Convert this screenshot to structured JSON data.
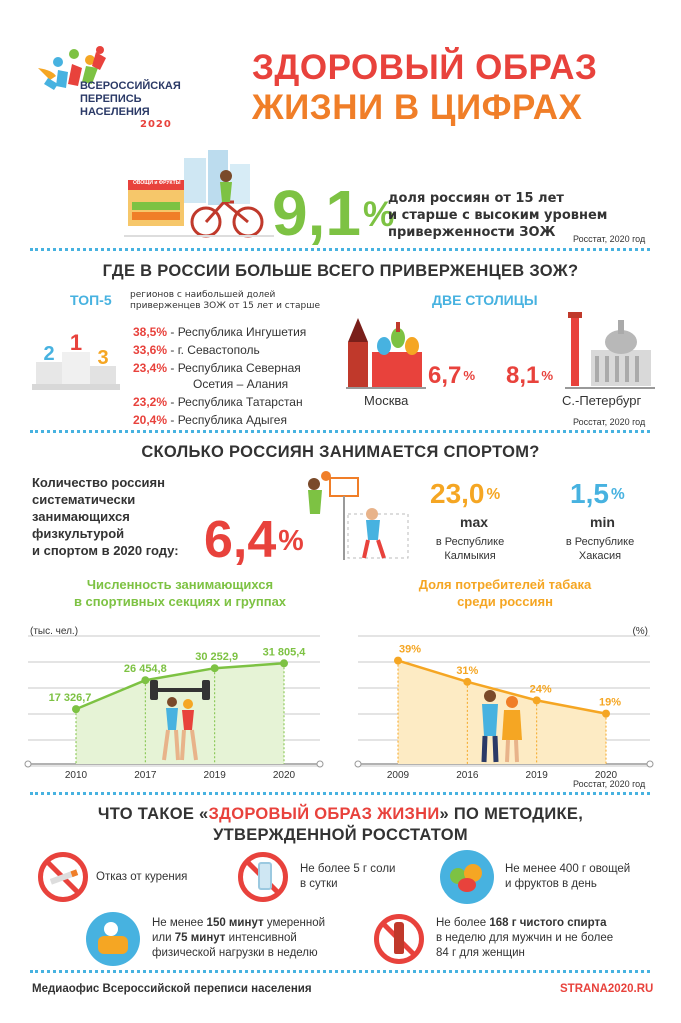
{
  "header": {
    "logo_line1": "ВСЕРОССИЙСКАЯ",
    "logo_line2": "ПЕРЕПИСЬ",
    "logo_line3": "НАСЕЛЕНИЯ",
    "logo_year": "2020",
    "title_line1": "ЗДОРОВЫЙ ОБРАЗ",
    "title_line2": "ЖИЗНИ В ЦИФРАХ"
  },
  "illustration": {
    "shop_sign": "ОВОЩИ и ФРУКТЫ"
  },
  "zozh": {
    "value": "9,1",
    "unit": "%",
    "text_line1": "доля россиян от 15 лет",
    "text_line2": "и старше с высоким уровнем",
    "text_line3": "приверженности ЗОЖ",
    "source": "Росстат, 2020 год"
  },
  "regions": {
    "section_title": "ГДЕ В РОССИИ БОЛЬШЕ ВСЕГО ПРИВЕРЖЕНЦЕВ ЗОЖ?",
    "top5_label": "ТОП-5",
    "top5_sub_line1": "регионов с наибольшей долей",
    "top5_sub_line2": "приверженцев ЗОЖ от 15 лет и старше",
    "podium": [
      "1",
      "2",
      "3"
    ],
    "items": [
      {
        "value": "38,5%",
        "name": " - Республика Ингушетия"
      },
      {
        "value": "33,6%",
        "name": " - г. Севастополь"
      },
      {
        "value": "23,4%",
        "name": " - Республика Северная"
      },
      {
        "value": "",
        "name": "Осетия – Алания"
      },
      {
        "value": "23,2%",
        "name": " - Республика Татарстан"
      },
      {
        "value": "20,4%",
        "name": " - Республика Адыгея"
      }
    ],
    "capitals_label": "ДВЕ СТОЛИЦЫ",
    "moscow_value": "6,7",
    "moscow_name": "Москва",
    "spb_value": "8,1",
    "spb_name": "С.-Петербург",
    "unit": "%",
    "source": "Росстат, 2020 год"
  },
  "sport": {
    "section_title": "СКОЛЬКО РОССИЯН ЗАНИМАЕТСЯ СПОРТОМ?",
    "label_line1": "Количество россиян",
    "label_line2": "систематически",
    "label_line3": "занимающихся",
    "label_line4": "физкультурой",
    "label_line5": "и спортом в 2020 году:",
    "value": "6,4",
    "unit": "%",
    "max_value": "23,0",
    "max_label": "max",
    "max_sub_line1": "в Республике",
    "max_sub_line2": "Калмыкия",
    "min_value": "1,5",
    "min_label": "min",
    "min_sub_line1": "в Республике",
    "min_sub_line2": "Хакасия",
    "source": "Росстат, 2020 год"
  },
  "colors": {
    "red": "#e8423c",
    "orange": "#f07e28",
    "green": "#7dc243",
    "blue": "#47b2e0",
    "yellow": "#f5a623"
  },
  "chart_data": [
    {
      "type": "area",
      "title_line1": "Численность занимающихся",
      "title_line2": "в спортивных секциях и группах",
      "ylabel": "(тыс. чел.)",
      "xlabel": "",
      "categories": [
        "2010",
        "2017",
        "2019",
        "2020"
      ],
      "values": [
        17326.7,
        26454.8,
        30252.9,
        31805.4
      ],
      "labels": [
        "17 326,7",
        "26 454,8",
        "30 252,9",
        "31 805,4"
      ],
      "ylim": [
        0,
        36000
      ],
      "grid": true,
      "color": "#7dc243"
    },
    {
      "type": "area",
      "title_line1": "Доля потребителей табака",
      "title_line2": "среди россиян",
      "ylabel": "(%)",
      "xlabel": "",
      "categories": [
        "2009",
        "2016",
        "2019",
        "2020"
      ],
      "values": [
        39,
        31,
        24,
        19
      ],
      "labels": [
        "39%",
        "31%",
        "24%",
        "19%"
      ],
      "ylim": [
        0,
        43
      ],
      "grid": true,
      "color": "#f5a623"
    }
  ],
  "definition": {
    "title_pre": "ЧТО ТАКОЕ «",
    "title_hl": "ЗДОРОВЫЙ ОБРАЗ ЖИЗНИ",
    "title_post": "» ПО МЕТОДИКЕ,",
    "title_line2": "УТВЕРЖДЕННОЙ РОССТАТОМ",
    "item1": "Отказ от курения",
    "item2_line1": "Не более 5 г соли",
    "item2_line2": "в сутки",
    "item3_line1": "Не менее 400 г овощей",
    "item3_line2": "и фруктов в день",
    "item4_a": "Не менее ",
    "item4_b": "150 минут",
    "item4_c": " умеренной",
    "item4_d": "или ",
    "item4_e": "75 минут",
    "item4_f": " интенсивной",
    "item4_line3": "физической нагрузки в неделю",
    "item5_a": "Не более ",
    "item5_b": "168 г чистого спирта",
    "item5_line2": "в неделю для мужчин и не более",
    "item5_line3": "84 г для женщин",
    "icons": [
      "no-smoking-icon",
      "salt-icon",
      "fruits-icon",
      "activity-icon",
      "no-alcohol-icon"
    ]
  },
  "footer": {
    "left": "Медиаофис Всероссийской переписи населения",
    "right": "STRANA2020.RU"
  }
}
